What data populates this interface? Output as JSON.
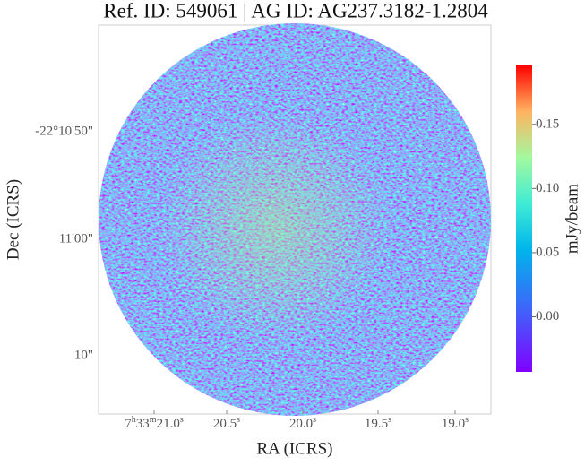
{
  "chart_data": {
    "type": "image",
    "title": "Ref. ID: 549061 | AG ID: AG237.3182-1.2804",
    "x_label": "RA (ICRS)",
    "y_label": "Dec (ICRS)",
    "colorbar_label": "mJy/beam",
    "ra_ticks": [
      [
        "7",
        "h",
        "33",
        "m",
        "21.0",
        "s"
      ],
      [
        "20.5",
        "s"
      ],
      [
        "20.0",
        "s"
      ],
      [
        "19.5",
        "s"
      ],
      [
        "19.0",
        "s"
      ]
    ],
    "dec_ticks": [
      "-22°10'50\"",
      "11'00\"",
      "10\""
    ],
    "clim": [
      -0.043,
      0.196
    ],
    "cticks": [
      {
        "value": 0,
        "label": "0.00"
      },
      0.05,
      {
        "value": 0.1,
        "label": "0.10"
      },
      0.15
    ]
  }
}
